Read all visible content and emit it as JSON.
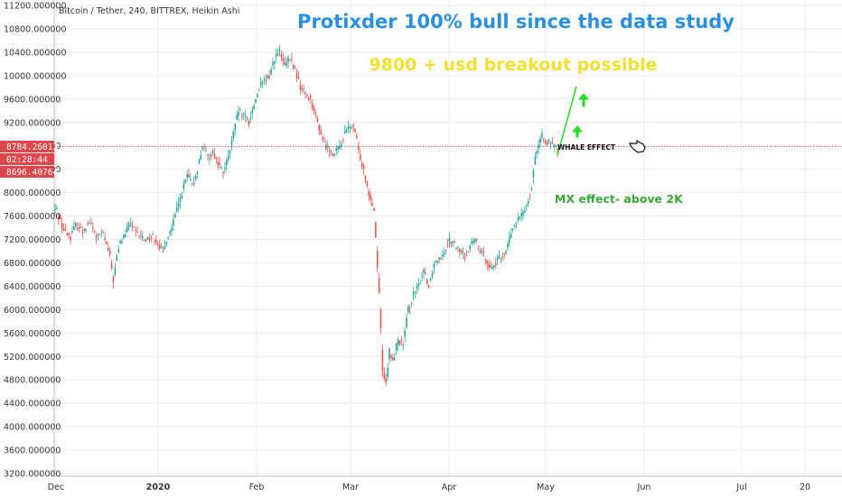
{
  "chart_data": {
    "type": "candlestick",
    "symbol_label": "Bitcoin / Tether, 240, BITTREX, Heikin Ashi",
    "title": "Protixder 100% bull since the data study",
    "subtitle": "9800 + usd breakout possible",
    "annotations": {
      "whale": "WHALE EFFECT",
      "mx": "MX effect- above 2K"
    },
    "price_tags": [
      "8784.26013",
      "02:28:44",
      "8696.40764"
    ],
    "current_price": 8784.26,
    "x_tick_labels": [
      "Dec",
      "2020",
      "Feb",
      "Mar",
      "Apr",
      "May",
      "Jun",
      "Jul",
      "20"
    ],
    "y_tick_labels": [
      "11200.000000",
      "10800.000000",
      "10400.000000",
      "10000.000000",
      "9600.000000",
      "9200.000000",
      "8800.000000",
      "8400.000000",
      "8000.000000",
      "7600.000000",
      "7200.000000",
      "6800.000000",
      "6400.000000",
      "6000.000000",
      "5600.000000",
      "5200.000000",
      "4800.000000",
      "4400.000000",
      "4000.000000",
      "3600.000000",
      "3200.000000"
    ],
    "ylim": [
      3200,
      11200
    ],
    "series": [
      {
        "values": [
          [
            1,
            7700
          ],
          [
            5,
            7350
          ],
          [
            9,
            7250
          ],
          [
            12,
            7450
          ],
          [
            16,
            7350
          ],
          [
            20,
            7500
          ],
          [
            24,
            7250
          ],
          [
            28,
            7300
          ],
          [
            30,
            7100
          ],
          [
            32,
            6900
          ],
          [
            34,
            6500
          ],
          [
            36,
            6900
          ],
          [
            38,
            7150
          ],
          [
            41,
            7300
          ],
          [
            44,
            7500
          ],
          [
            47,
            7300
          ],
          [
            50,
            7250
          ],
          [
            53,
            7200
          ],
          [
            57,
            7250
          ],
          [
            60,
            7150
          ],
          [
            63,
            6950
          ],
          [
            65,
            7200
          ],
          [
            68,
            7400
          ],
          [
            71,
            7700
          ],
          [
            74,
            8000
          ],
          [
            77,
            8300
          ],
          [
            80,
            8100
          ],
          [
            83,
            8400
          ],
          [
            86,
            8800
          ],
          [
            89,
            8600
          ],
          [
            92,
            8700
          ],
          [
            95,
            8500
          ],
          [
            98,
            8350
          ],
          [
            101,
            8600
          ],
          [
            104,
            9000
          ],
          [
            107,
            9400
          ],
          [
            110,
            9300
          ],
          [
            113,
            9200
          ],
          [
            116,
            9500
          ],
          [
            119,
            9800
          ],
          [
            122,
            9900
          ],
          [
            125,
            10000
          ],
          [
            128,
            10300
          ],
          [
            131,
            10400
          ],
          [
            134,
            10150
          ],
          [
            137,
            10300
          ],
          [
            140,
            10100
          ],
          [
            143,
            9800
          ],
          [
            146,
            9700
          ],
          [
            149,
            9600
          ],
          [
            152,
            9300
          ],
          [
            155,
            9000
          ],
          [
            158,
            8800
          ],
          [
            161,
            8700
          ],
          [
            163,
            8650
          ],
          [
            166,
            8800
          ],
          [
            169,
            9000
          ],
          [
            172,
            9150
          ],
          [
            175,
            9050
          ],
          [
            177,
            8700
          ],
          [
            180,
            8400
          ],
          [
            183,
            8000
          ],
          [
            186,
            7700
          ],
          [
            189,
            6300
          ],
          [
            191,
            5000
          ],
          [
            193,
            4700
          ],
          [
            195,
            5300
          ],
          [
            197,
            5100
          ],
          [
            200,
            5500
          ],
          [
            203,
            5400
          ],
          [
            206,
            6000
          ],
          [
            209,
            6250
          ],
          [
            212,
            6400
          ],
          [
            215,
            6700
          ],
          [
            218,
            6400
          ],
          [
            221,
            6800
          ],
          [
            224,
            6900
          ],
          [
            227,
            7000
          ],
          [
            230,
            7200
          ],
          [
            233,
            7100
          ],
          [
            236,
            7000
          ],
          [
            239,
            6900
          ],
          [
            242,
            7100
          ],
          [
            245,
            7200
          ],
          [
            248,
            7000
          ],
          [
            251,
            6900
          ],
          [
            254,
            6700
          ],
          [
            257,
            6800
          ],
          [
            260,
            6900
          ],
          [
            263,
            7000
          ],
          [
            266,
            7300
          ],
          [
            269,
            7500
          ],
          [
            272,
            7600
          ],
          [
            275,
            7800
          ],
          [
            278,
            8100
          ],
          [
            280,
            8650
          ],
          [
            282,
            8800
          ],
          [
            284,
            8950
          ],
          [
            286,
            8900
          ],
          [
            288,
            8850
          ],
          [
            290,
            8800
          ],
          [
            293,
            8750
          ]
        ]
      }
    ],
    "grid": true,
    "legend": "none"
  }
}
